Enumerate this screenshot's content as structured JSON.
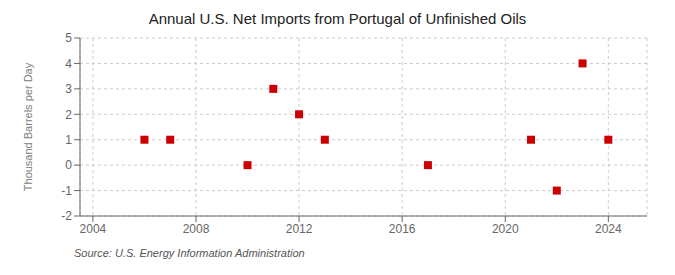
{
  "chart_data": {
    "type": "scatter",
    "title": "Annual U.S. Net Imports from Portugal of Unfinished Oils",
    "ylabel": "Thousand Barrels per Day",
    "annotation": "Source: U.S. Energy Information Administration",
    "x": [
      2006,
      2007,
      2010,
      2011,
      2012,
      2013,
      2017,
      2021,
      2022,
      2023,
      2024
    ],
    "values": [
      1,
      1,
      0,
      3,
      2,
      1,
      0,
      1,
      -1,
      4,
      1
    ],
    "color": "#cc0000",
    "marker": "square",
    "xlim": [
      2003.5,
      2025.5
    ],
    "xticks": [
      2004,
      2008,
      2012,
      2016,
      2020,
      2024
    ],
    "ylim": [
      -2,
      5
    ],
    "yticks": [
      -2,
      -1,
      0,
      1,
      2,
      3,
      4,
      5
    ],
    "grid": true
  }
}
